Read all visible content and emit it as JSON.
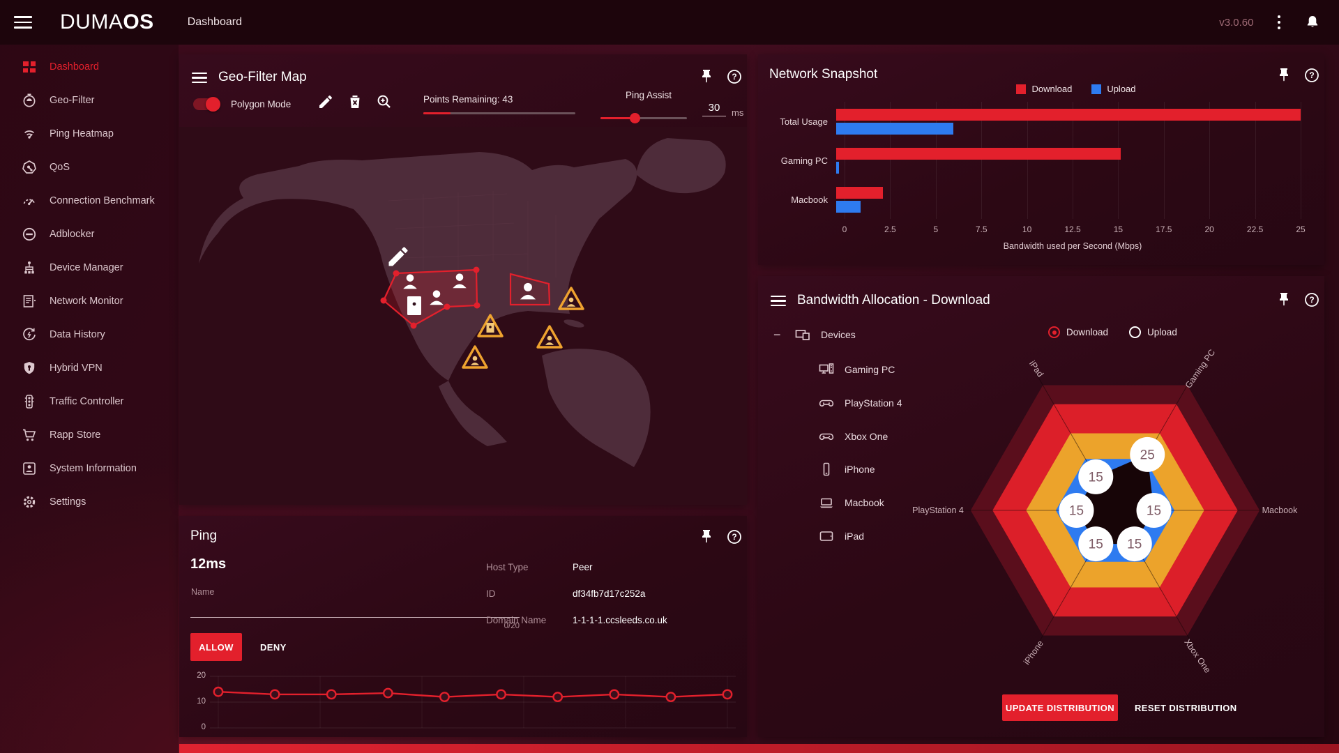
{
  "topbar": {
    "brand_light": "DUMA",
    "brand_bold": "OS",
    "page_title": "Dashboard",
    "version": "v3.0.60"
  },
  "sidebar": {
    "items": [
      {
        "label": "Dashboard",
        "icon": "dashboard-icon",
        "active": true
      },
      {
        "label": "Geo-Filter",
        "icon": "geo-filter-icon"
      },
      {
        "label": "Ping Heatmap",
        "icon": "ping-heatmap-icon"
      },
      {
        "label": "QoS",
        "icon": "qos-icon"
      },
      {
        "label": "Connection Benchmark",
        "icon": "connection-benchmark-icon"
      },
      {
        "label": "Adblocker",
        "icon": "adblocker-icon"
      },
      {
        "label": "Device Manager",
        "icon": "device-manager-icon"
      },
      {
        "label": "Network Monitor",
        "icon": "network-monitor-icon"
      },
      {
        "label": "Data History",
        "icon": "data-history-icon"
      },
      {
        "label": "Hybrid VPN",
        "icon": "hybrid-vpn-icon"
      },
      {
        "label": "Traffic Controller",
        "icon": "traffic-controller-icon"
      },
      {
        "label": "Rapp Store",
        "icon": "rapp-store-icon"
      },
      {
        "label": "System Information",
        "icon": "system-information-icon"
      },
      {
        "label": "Settings",
        "icon": "settings-icon"
      }
    ]
  },
  "geo_map": {
    "title": "Geo-Filter Map",
    "polygon_mode_label": "Polygon Mode",
    "polygon_mode_on": true,
    "points_remaining_label": "Points Remaining: 43",
    "points_progress_pct": 18,
    "ping_assist_label": "Ping Assist",
    "ping_assist_value": "30",
    "ping_assist_unit": "ms",
    "ping_assist_pct": 40
  },
  "network_snapshot": {
    "title": "Network Snapshot"
  },
  "bandwidth_allocation": {
    "title": "Bandwidth Allocation - Download",
    "tree_root_label": "Devices",
    "devices": [
      {
        "label": "Gaming PC",
        "icon": "gaming-pc-icon"
      },
      {
        "label": "PlayStation 4",
        "icon": "playstation-icon"
      },
      {
        "label": "Xbox One",
        "icon": "xbox-icon"
      },
      {
        "label": "iPhone",
        "icon": "iphone-icon"
      },
      {
        "label": "Macbook",
        "icon": "macbook-icon"
      },
      {
        "label": "iPad",
        "icon": "ipad-icon"
      }
    ],
    "direction_options": [
      "Download",
      "Upload"
    ],
    "selected_direction": "Download",
    "update_button": "UPDATE DISTRIBUTION",
    "reset_button": "RESET DISTRIBUTION"
  },
  "ping_panel": {
    "title": "Ping",
    "current_ping": "12ms",
    "name_label": "Name",
    "name_value": "",
    "char_counter": "0/20",
    "allow_label": "ALLOW",
    "deny_label": "DENY",
    "fields": [
      {
        "label": "Host Type",
        "value": "Peer"
      },
      {
        "label": "ID",
        "value": "df34fb7d17c252a"
      },
      {
        "label": "Domain Name",
        "value": "1-1-1-1.ccsleeds.co.uk"
      }
    ]
  },
  "colors": {
    "accent_red": "#e3202c",
    "upload_blue": "#2e7bf0",
    "radar_orange": "#eca32b",
    "radar_dark_ring": "#5a0e1c",
    "warning_orange": "#efa32f"
  },
  "chart_data": [
    {
      "type": "bar",
      "orientation": "horizontal",
      "panel": "Network Snapshot",
      "categories": [
        "Total Usage",
        "Gaming PC",
        "Macbook"
      ],
      "series": [
        {
          "name": "Download",
          "color": "#e3202c",
          "values": [
            25,
            15.3,
            2.5
          ]
        },
        {
          "name": "Upload",
          "color": "#2e7bf0",
          "values": [
            6.3,
            0.15,
            1.3
          ]
        }
      ],
      "xlabel": "Bandwidth used per Second (Mbps)",
      "xlim": [
        0,
        25
      ],
      "xticks": [
        0,
        2.5,
        5,
        7.5,
        10,
        12.5,
        15,
        17.5,
        20,
        22.5,
        25
      ],
      "legend_position": "top",
      "grid": true
    },
    {
      "type": "radar",
      "panel": "Bandwidth Allocation - Download",
      "axes": [
        "Gaming PC",
        "Macbook",
        "Xbox One",
        "iPhone",
        "PlayStation 4",
        "iPad"
      ],
      "angles": [
        60,
        0,
        300,
        240,
        180,
        120
      ],
      "values": [
        25,
        15,
        15,
        15,
        15,
        15
      ],
      "max": 56,
      "rings": [
        {
          "color": "#5a0e1c",
          "r": 56
        },
        {
          "color": "#dc1f29",
          "r": 47.5
        },
        {
          "color": "#eca32b",
          "r": 34.5
        },
        {
          "color": "#2e7bf0",
          "r": 23
        }
      ],
      "value_fill": "#170507"
    },
    {
      "type": "line",
      "panel": "Ping",
      "series": [
        {
          "name": "ping_ms",
          "color": "#e3202c",
          "values": [
            14,
            13,
            13,
            13.5,
            12,
            13,
            12,
            13,
            12,
            13
          ]
        }
      ],
      "ylim": [
        0,
        20
      ],
      "yticks": [
        0,
        10,
        20
      ],
      "x_count": 10
    }
  ]
}
